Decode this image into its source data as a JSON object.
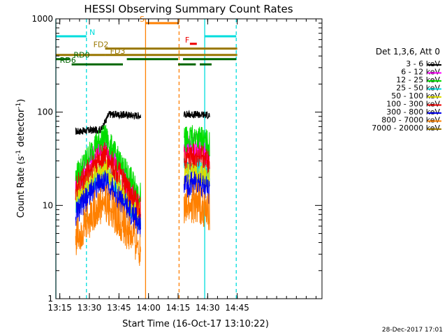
{
  "chart_data": {
    "type": "line",
    "title": "HESSI Observing Summary Count Rates",
    "xlabel": "Start Time (16-Oct-17 13:10:22)",
    "ylabel_main": "Count Rate (s",
    "ylabel_exp1": "-1",
    "ylabel_mid": " detector",
    "ylabel_exp2": "-1",
    "ylabel_end": ")",
    "y_scale": "log",
    "ylim": [
      1,
      1000
    ],
    "xlim_minutes": [
      13.0,
      148.0
    ],
    "x_ticks": [
      {
        "minutes": 15,
        "label": "13:15"
      },
      {
        "minutes": 30,
        "label": "13:30"
      },
      {
        "minutes": 45,
        "label": "13:45"
      },
      {
        "minutes": 60,
        "label": "14:00"
      },
      {
        "minutes": 75,
        "label": "14:15"
      },
      {
        "minutes": 90,
        "label": "14:30"
      },
      {
        "minutes": 105,
        "label": "14:45"
      }
    ],
    "y_ticks": [
      {
        "value": 1,
        "label": "1"
      },
      {
        "value": 10,
        "label": "10"
      },
      {
        "value": 100,
        "label": "100"
      },
      {
        "value": 1000,
        "label": "1000"
      }
    ],
    "legend_title": "Det 1,3,6, Att 0",
    "legend_position": "right",
    "series": [
      {
        "name": "3 - 6 keV",
        "color": "#000000",
        "dur1": [
          [
            23,
            62
          ],
          [
            36,
            65
          ],
          [
            40,
            95
          ],
          [
            56,
            92
          ]
        ],
        "dur2": [
          [
            78,
            95
          ],
          [
            91,
            93
          ]
        ]
      },
      {
        "name": "6 - 12 keV",
        "color": "#ff00ff",
        "dur1": [
          [
            23,
            17
          ],
          [
            33,
            35
          ],
          [
            38,
            42
          ],
          [
            45,
            25
          ],
          [
            56,
            10
          ]
        ],
        "dur2": [
          [
            78,
            40
          ],
          [
            85,
            44
          ],
          [
            91,
            35
          ]
        ]
      },
      {
        "name": "12 - 25 keV",
        "color": "#00dd00",
        "dur1": [
          [
            23,
            20
          ],
          [
            33,
            45
          ],
          [
            38,
            55
          ],
          [
            45,
            30
          ],
          [
            56,
            13
          ]
        ],
        "dur2": [
          [
            78,
            50
          ],
          [
            85,
            55
          ],
          [
            91,
            45
          ]
        ]
      },
      {
        "name": "25 - 50 keV",
        "color": "#00dddd",
        "dur1": [
          [
            23,
            11
          ],
          [
            33,
            20
          ],
          [
            38,
            23
          ],
          [
            45,
            15
          ],
          [
            56,
            7
          ]
        ],
        "dur2": [
          [
            78,
            25
          ],
          [
            85,
            26
          ],
          [
            91,
            20
          ]
        ]
      },
      {
        "name": "50 - 100 keV",
        "color": "#dddd00",
        "dur1": [
          [
            23,
            12
          ],
          [
            33,
            22
          ],
          [
            38,
            24
          ],
          [
            45,
            16
          ],
          [
            56,
            8
          ]
        ],
        "dur2": [
          [
            78,
            21
          ],
          [
            85,
            22
          ],
          [
            91,
            19
          ]
        ]
      },
      {
        "name": "100 - 300 keV",
        "color": "#ee0000",
        "dur1": [
          [
            23,
            15
          ],
          [
            33,
            30
          ],
          [
            38,
            35
          ],
          [
            45,
            22
          ],
          [
            56,
            9
          ]
        ],
        "dur2": [
          [
            78,
            32
          ],
          [
            85,
            35
          ],
          [
            91,
            28
          ]
        ]
      },
      {
        "name": "300 - 800 keV",
        "color": "#0000ee",
        "dur1": [
          [
            23,
            8
          ],
          [
            33,
            16
          ],
          [
            38,
            18
          ],
          [
            45,
            12
          ],
          [
            56,
            6
          ]
        ],
        "dur2": [
          [
            78,
            16
          ],
          [
            85,
            18
          ],
          [
            91,
            14
          ]
        ]
      },
      {
        "name": "800 - 7000 keV",
        "color": "#ff8000",
        "dur1": [
          [
            23,
            4.5
          ],
          [
            33,
            9
          ],
          [
            38,
            11
          ],
          [
            45,
            7
          ],
          [
            56,
            3.5
          ]
        ],
        "dur2": [
          [
            78,
            9
          ],
          [
            85,
            11
          ],
          [
            91,
            8
          ]
        ]
      },
      {
        "name": "7000 - 20000 keV",
        "color": "#997700",
        "dur1": [],
        "dur2": []
      }
    ],
    "flag_bars": [
      {
        "label": "N",
        "color": "#00dddd",
        "segments": [
          [
            13,
            28.5
          ],
          [
            88.5,
            104.5
          ]
        ],
        "value": 650,
        "label_at": 30
      },
      {
        "label": "S",
        "color": "#ff8000",
        "segments": [
          [
            58.5,
            75.5
          ]
        ],
        "value": 900,
        "label_at": 55.5
      },
      {
        "label": "F",
        "color": "#ee0000",
        "segments": [
          [
            81,
            84.5
          ]
        ],
        "value": 540,
        "label_at": 78.5
      },
      {
        "label": "FD2",
        "color": "#997700",
        "segments": [
          [
            38,
            105
          ]
        ],
        "value": 480,
        "label_at": 32
      },
      {
        "label": "FD3",
        "color": "#997700",
        "segments": [
          [
            13,
            38
          ],
          [
            38,
            105
          ]
        ],
        "value": 410,
        "label_at": 40.5
      },
      {
        "label": "RD0",
        "color": "#006600",
        "segments": [
          [
            13,
            20
          ],
          [
            49,
            75
          ],
          [
            77.5,
            104.5
          ]
        ],
        "value": 370,
        "label_at": 22
      },
      {
        "label": "RD6",
        "color": "#006600",
        "segments": [
          [
            21,
            47
          ],
          [
            75,
            84
          ],
          [
            86,
            92
          ]
        ],
        "value": 325,
        "label_at": 15
      }
    ],
    "vlines": [
      {
        "minutes": 13,
        "color": "#00dddd",
        "style": "solid"
      },
      {
        "minutes": 28.5,
        "color": "#00dddd",
        "style": "dashed"
      },
      {
        "minutes": 58.5,
        "color": "#ff8000",
        "style": "solid"
      },
      {
        "minutes": 75.5,
        "color": "#ff8000",
        "style": "dashed"
      },
      {
        "minutes": 88.5,
        "color": "#00dddd",
        "style": "solid"
      },
      {
        "minutes": 104.5,
        "color": "#00dddd",
        "style": "dashed"
      }
    ],
    "footer_date": "28-Dec-2017 17:01"
  }
}
